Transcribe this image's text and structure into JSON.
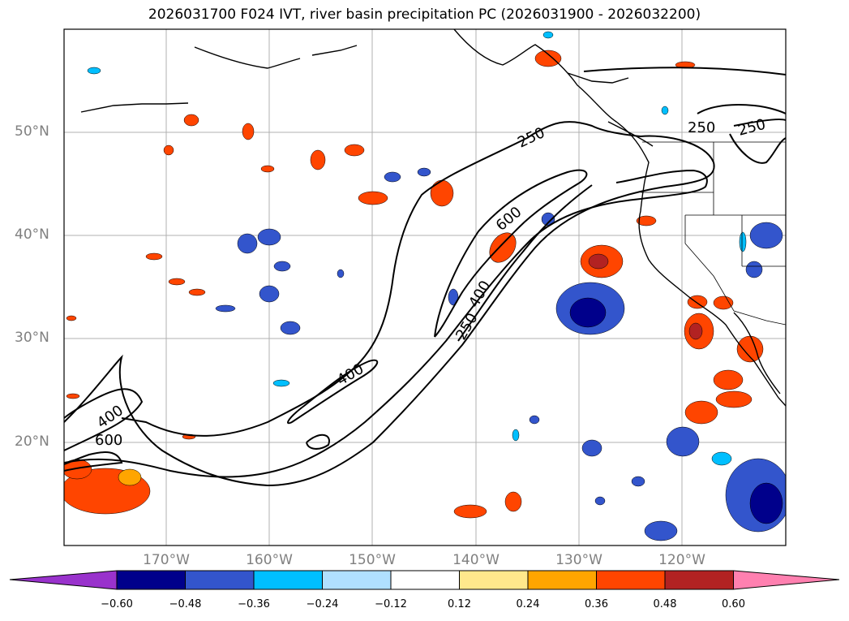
{
  "title": "2026031700 F024 IVT, river basin precipitation PC (2026031900 - 2026032200)",
  "map": {
    "lat_labels": [
      "50°N",
      "40°N",
      "30°N",
      "20°N"
    ],
    "lon_labels": [
      "170°W",
      "160°W",
      "150°W",
      "140°W",
      "130°W",
      "120°W"
    ],
    "ivt_contour_labels": [
      "250",
      "250",
      "250",
      "600",
      "400",
      "250",
      "400",
      "400",
      "600"
    ]
  },
  "colorbar": {
    "ticks": [
      "−0.60",
      "−0.48",
      "−0.36",
      "−0.24",
      "−0.12",
      "0.12",
      "0.24",
      "0.36",
      "0.48",
      "0.60"
    ],
    "colors": [
      "#9932cc",
      "#00008b",
      "#3355cc",
      "#00bfff",
      "#b0e0ff",
      "#ffffff",
      "#ffe88c",
      "#ffa500",
      "#ff4500",
      "#b22222",
      "#ff80b0"
    ]
  }
}
